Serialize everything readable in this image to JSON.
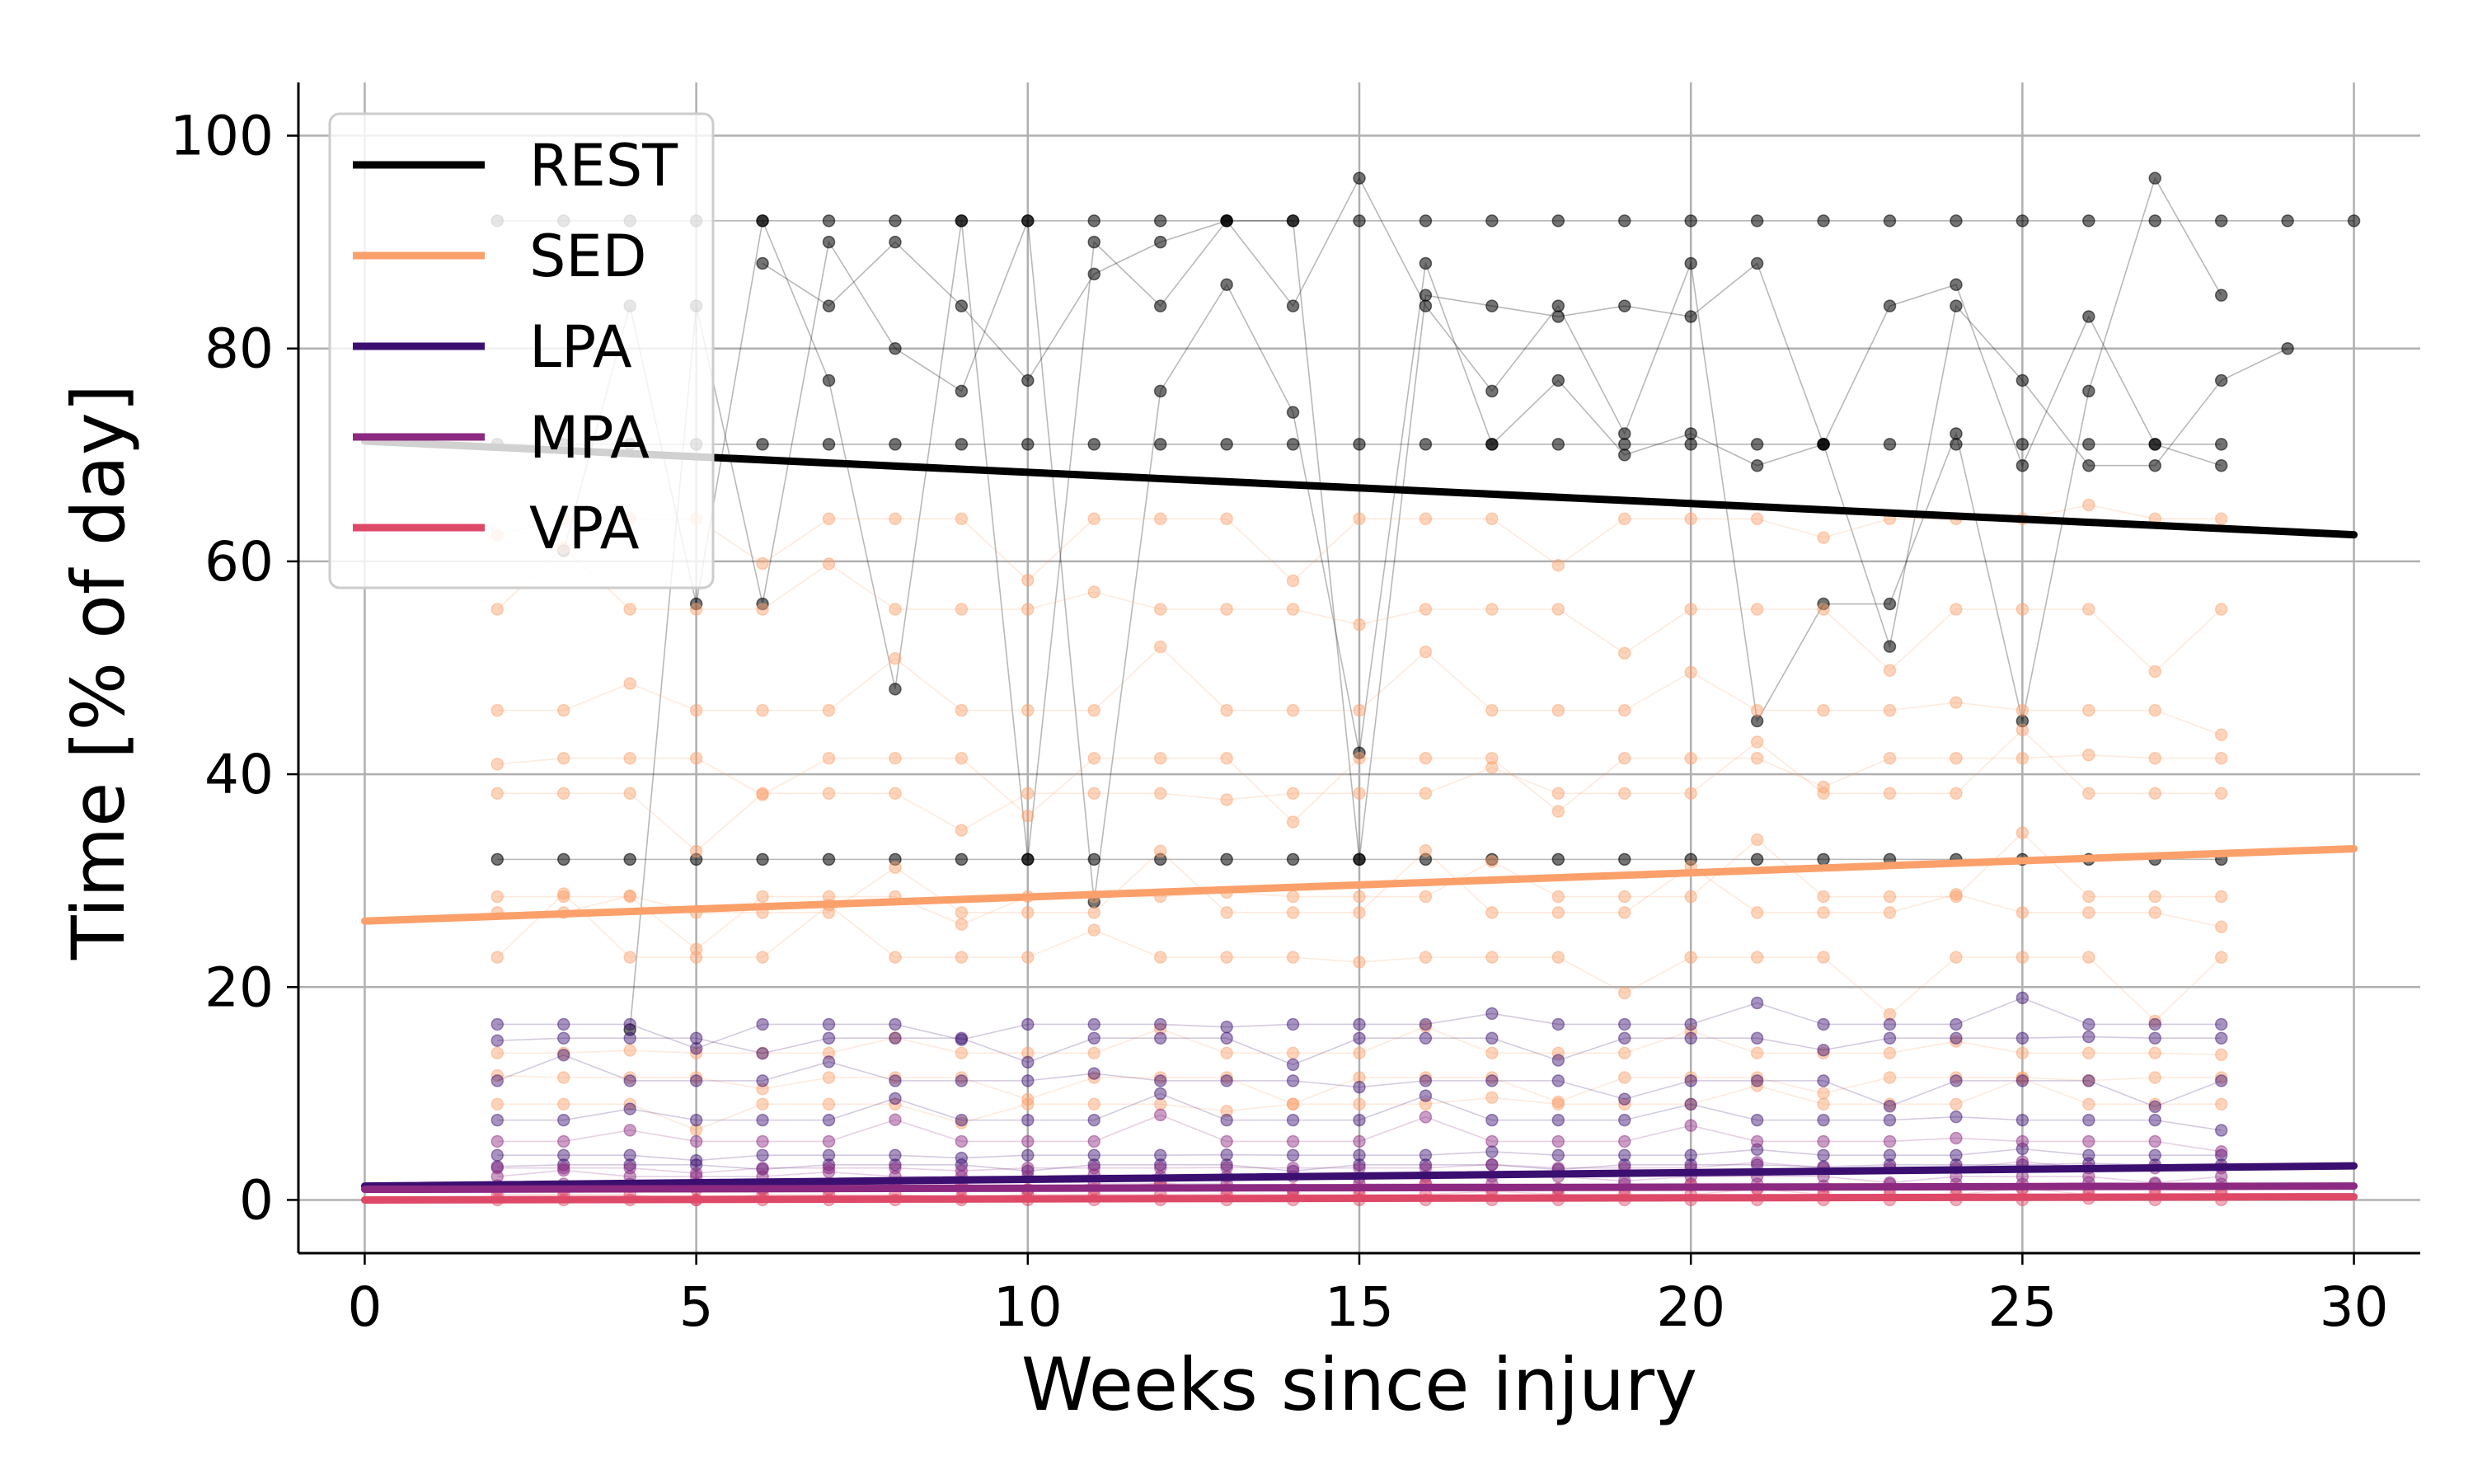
{
  "chart_data": {
    "type": "line",
    "xlabel": "Weeks since injury",
    "ylabel": "Time [% of day]",
    "xlim": [
      -1,
      31
    ],
    "ylim": [
      -5,
      105
    ],
    "xticks": [
      "0",
      "5",
      "10",
      "15",
      "20",
      "25",
      "30"
    ],
    "yticks": [
      "0",
      "20",
      "40",
      "60",
      "80",
      "100"
    ],
    "grid": true,
    "legend_position": "top-left",
    "trend_series": [
      {
        "name": "REST",
        "color": "#000000",
        "x": [
          0,
          30
        ],
        "y": [
          71.3,
          62.5
        ]
      },
      {
        "name": "SED",
        "color": "#fba06b",
        "x": [
          0,
          30
        ],
        "y": [
          26.2,
          33.0
        ]
      },
      {
        "name": "LPA",
        "color": "#3b0f70",
        "x": [
          0,
          30
        ],
        "y": [
          1.3,
          3.2
        ]
      },
      {
        "name": "MPA",
        "color": "#8c2981",
        "x": [
          0,
          30
        ],
        "y": [
          1.0,
          1.3
        ]
      },
      {
        "name": "VPA",
        "color": "#de4968",
        "x": [
          0,
          30
        ],
        "y": [
          0.0,
          0.3
        ]
      }
    ],
    "participant_series": [
      {
        "group": "REST",
        "color": "#000000",
        "x": [
          2,
          3,
          4,
          5,
          6,
          7,
          8,
          9,
          10,
          11,
          12,
          13,
          14,
          15,
          16,
          17,
          18,
          19,
          20,
          21,
          22,
          23,
          24,
          25,
          26,
          27,
          28
        ],
        "y": [
          71,
          71,
          71,
          71,
          71,
          71,
          71,
          71,
          71,
          71,
          71,
          71,
          71,
          71,
          71,
          71,
          71,
          71,
          71,
          71,
          71,
          71,
          71,
          71,
          71,
          71,
          71
        ]
      },
      {
        "group": "REST",
        "color": "#000000",
        "x": [
          2,
          3,
          4,
          5,
          6,
          7,
          8,
          9,
          10,
          11,
          12,
          13,
          14,
          15,
          16,
          17,
          18,
          19,
          20,
          21,
          22,
          23,
          24,
          25,
          26,
          27,
          28
        ],
        "y": [
          32,
          32,
          32,
          32,
          32,
          32,
          32,
          32,
          32,
          32,
          32,
          32,
          32,
          32,
          32,
          32,
          32,
          32,
          32,
          32,
          32,
          32,
          32,
          32,
          32,
          32,
          32
        ]
      },
      {
        "group": "REST",
        "color": "#000000",
        "x": [
          2,
          3,
          4,
          5,
          6,
          7,
          8,
          9,
          10,
          11,
          12,
          13,
          14,
          15,
          16,
          17,
          18,
          19,
          20,
          21,
          22,
          23,
          24,
          25,
          26,
          27,
          28,
          29,
          30
        ],
        "y": [
          92,
          92,
          92,
          92,
          92,
          92,
          92,
          92,
          92,
          92,
          92,
          92,
          92,
          92,
          92,
          92,
          92,
          92,
          92,
          92,
          92,
          92,
          92,
          92,
          92,
          92,
          92,
          92,
          92
        ]
      },
      {
        "group": "REST",
        "color": "#000000",
        "x": [
          3,
          4,
          5,
          6,
          7,
          8,
          9,
          10,
          11,
          12,
          13,
          14,
          15,
          16,
          17,
          18,
          19,
          20,
          21,
          22,
          23,
          24,
          25,
          26,
          27,
          28
        ],
        "y": [
          61,
          84,
          56,
          92,
          77,
          48,
          92,
          32,
          90,
          84,
          92,
          84,
          96,
          84,
          76,
          84,
          72,
          88,
          45,
          56,
          56,
          72,
          45,
          76,
          96,
          85
        ]
      },
      {
        "group": "REST",
        "color": "#000000",
        "x": [
          4,
          5,
          6,
          7,
          8,
          9,
          10,
          11,
          12,
          13,
          14,
          15,
          16,
          17,
          18,
          19,
          20,
          21,
          22,
          23,
          24,
          25,
          26,
          27,
          28,
          29
        ],
        "y": [
          16,
          84,
          56,
          90,
          80,
          76,
          92,
          28,
          76,
          86,
          74,
          42,
          88,
          71,
          77,
          70,
          72,
          69,
          71,
          52,
          84,
          77,
          69,
          69,
          77,
          80
        ]
      },
      {
        "group": "REST",
        "color": "#000000",
        "x": [
          6,
          7,
          8,
          9,
          10,
          11,
          12,
          13,
          14,
          15,
          16,
          17,
          18,
          19,
          20,
          21,
          22,
          23,
          24,
          25,
          26,
          27,
          28
        ],
        "y": [
          88,
          84,
          90,
          84,
          77,
          87,
          90,
          92,
          92,
          32,
          85,
          84,
          83,
          84,
          83,
          88,
          71,
          84,
          86,
          69,
          83,
          71,
          69
        ]
      }
    ],
    "participant_groups": {
      "SED": {
        "color": "#fba06b",
        "levels": [
          64,
          28.5,
          46,
          55.5,
          41.5,
          38.2,
          27,
          22.8,
          11.5,
          9,
          13.8
        ]
      },
      "LPA": {
        "color": "#3b0f70",
        "levels": [
          3.3,
          4.2,
          7.5,
          11.2,
          15.2,
          16.5
        ]
      },
      "MPA": {
        "color": "#8c2981",
        "levels": [
          1.5,
          3.0,
          5.5,
          2.2
        ]
      },
      "VPA": {
        "color": "#de4968",
        "levels": [
          0.0,
          0.5,
          1.0
        ]
      }
    }
  }
}
